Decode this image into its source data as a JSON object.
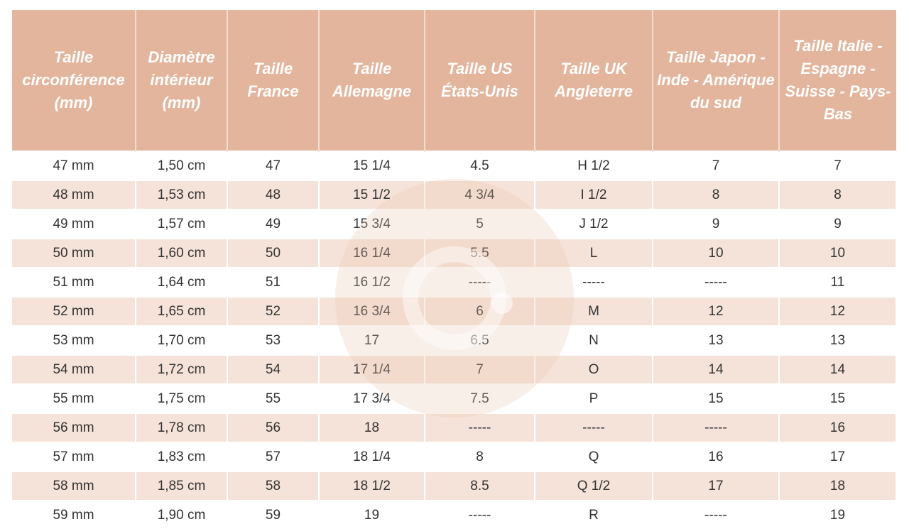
{
  "colors": {
    "header_bg": "#e3b59c",
    "alt_row_bg": "#f5e3d9",
    "header_text": "#ffffff"
  },
  "watermark": {
    "icon": "g-logo-watermark"
  },
  "columns": [
    "Taille circonférence (mm)",
    "Diamètre intérieur (mm)",
    "Taille France",
    "Taille Allemagne",
    "Taille US États-Unis",
    "Taille UK Angleterre",
    "Taille Japon - Inde - Amérique du sud",
    "Taille Italie - Espagne - Suisse - Pays-Bas"
  ],
  "rows": [
    [
      "47 mm",
      "1,50 cm",
      "47",
      "15 1/4",
      "4.5",
      "H 1/2",
      "7",
      "7"
    ],
    [
      "48 mm",
      "1,53 cm",
      "48",
      "15 1/2",
      "4 3/4",
      "I 1/2",
      "8",
      "8"
    ],
    [
      "49 mm",
      "1,57 cm",
      "49",
      "15 3/4",
      "5",
      "J 1/2",
      "9",
      "9"
    ],
    [
      "50 mm",
      "1,60 cm",
      "50",
      "16 1/4",
      "5.5",
      "L",
      "10",
      "10"
    ],
    [
      "51 mm",
      "1,64 cm",
      "51",
      "16 1/2",
      "-----",
      "-----",
      "-----",
      "11"
    ],
    [
      "52 mm",
      "1,65 cm",
      "52",
      "16 3/4",
      "6",
      "M",
      "12",
      "12"
    ],
    [
      "53 mm",
      "1,70 cm",
      "53",
      "17",
      "6.5",
      "N",
      "13",
      "13"
    ],
    [
      "54 mm",
      "1,72 cm",
      "54",
      "17 1/4",
      "7",
      "O",
      "14",
      "14"
    ],
    [
      "55 mm",
      "1,75 cm",
      "55",
      "17 3/4",
      "7.5",
      "P",
      "15",
      "15"
    ],
    [
      "56 mm",
      "1,78 cm",
      "56",
      "18",
      "-----",
      "-----",
      "-----",
      "16"
    ],
    [
      "57 mm",
      "1,83 cm",
      "57",
      "18 1/4",
      "8",
      "Q",
      "16",
      "17"
    ],
    [
      "58 mm",
      "1,85 cm",
      "58",
      "18 1/2",
      "8.5",
      "Q 1/2",
      "17",
      "18"
    ],
    [
      "59 mm",
      "1,90 cm",
      "59",
      "19",
      "-----",
      "R",
      "-----",
      "19"
    ]
  ]
}
